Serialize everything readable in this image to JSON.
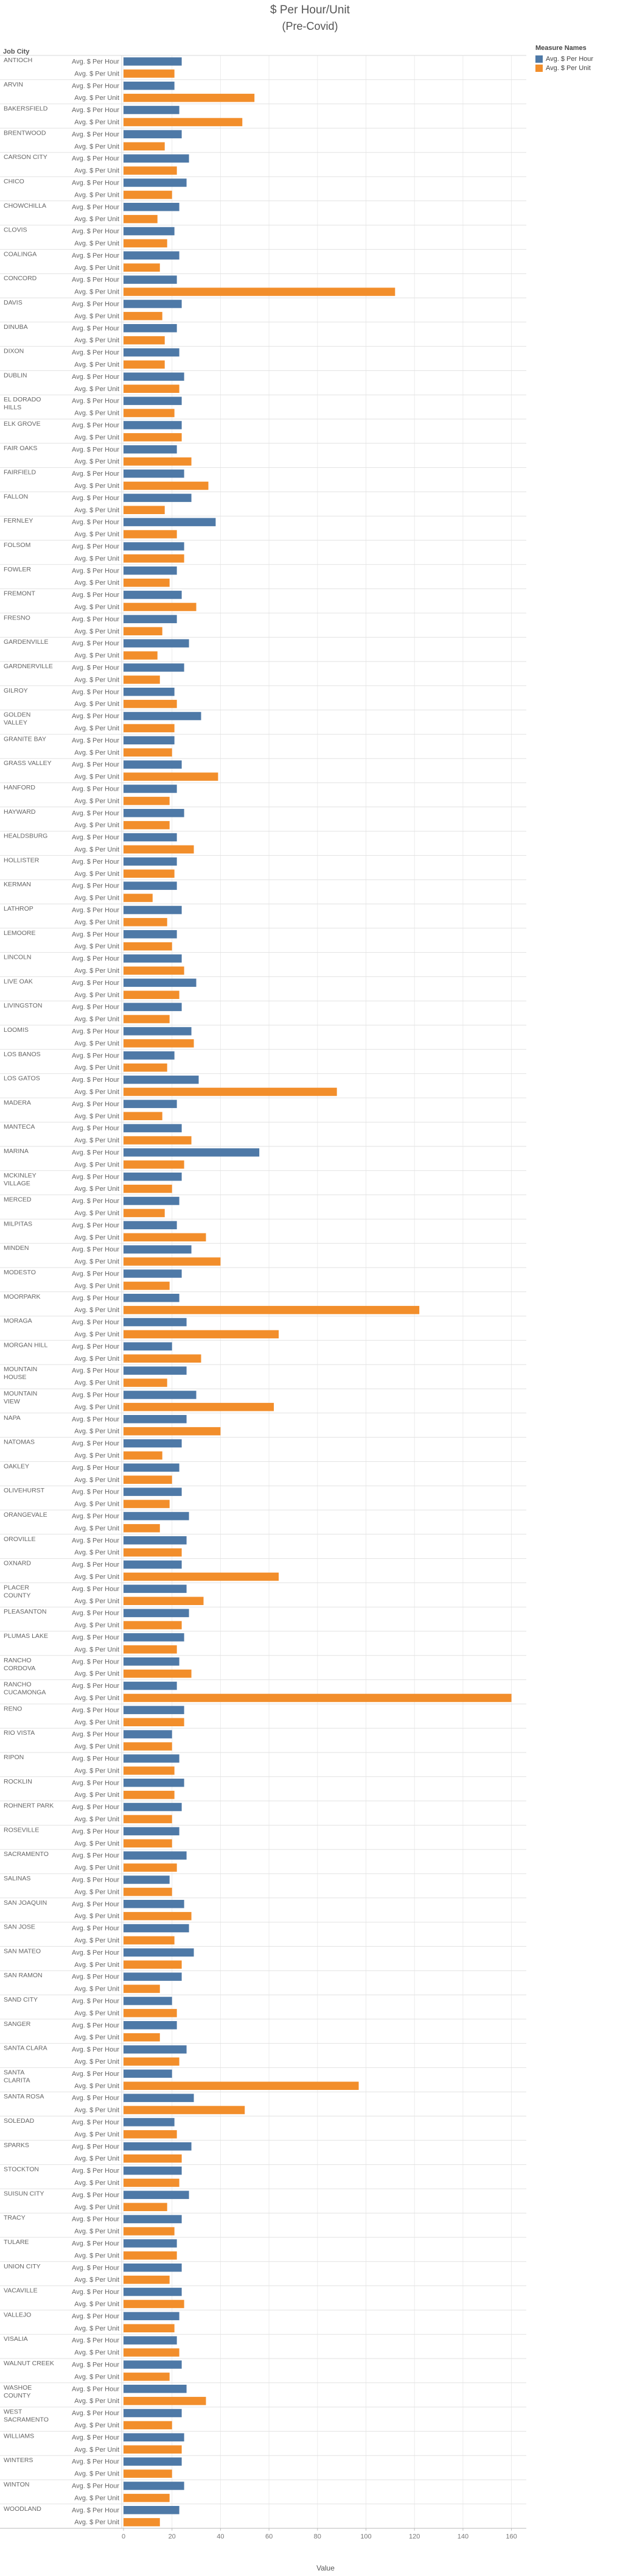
{
  "title": "$ Per Hour/Unit",
  "subtitle": "(Pre-Covid)",
  "colors": {
    "hour": "#4e79a7",
    "unit": "#f28e2b"
  },
  "chart_data": {
    "type": "bar",
    "orientation": "horizontal",
    "row_header": "Job City",
    "xlabel": "Value",
    "xlim": [
      -0.5,
      165
    ],
    "xticks": [
      0,
      20,
      40,
      60,
      80,
      100,
      120,
      140,
      160
    ],
    "grid": true,
    "legend": {
      "title": "Measure Names",
      "position": "top-right",
      "entries": [
        "Avg. $ Per Hour",
        "Avg. $ Per Unit"
      ]
    },
    "measure_labels": [
      "Avg. $ Per Hour",
      "Avg. $ Per Unit"
    ],
    "categories": [
      "ANTIOCH",
      "ARVIN",
      "BAKERSFIELD",
      "BRENTWOOD",
      "CARSON CITY",
      "CHICO",
      "CHOWCHILLA",
      "CLOVIS",
      "COALINGA",
      "CONCORD",
      "DAVIS",
      "DINUBA",
      "DIXON",
      "DUBLIN",
      "EL DORADO HILLS",
      "ELK GROVE",
      "FAIR OAKS",
      "FAIRFIELD",
      "FALLON",
      "FERNLEY",
      "FOLSOM",
      "FOWLER",
      "FREMONT",
      "FRESNO",
      "GARDENVILLE",
      "GARDNERVILLE",
      "GILROY",
      "GOLDEN VALLEY",
      "GRANITE BAY",
      "GRASS VALLEY",
      "HANFORD",
      "HAYWARD",
      "HEALDSBURG",
      "HOLLISTER",
      "KERMAN",
      "LATHROP",
      "LEMOORE",
      "LINCOLN",
      "LIVE OAK",
      "LIVINGSTON",
      "LOOMIS",
      "LOS BANOS",
      "LOS GATOS",
      "MADERA",
      "MANTECA",
      "MARINA",
      "MCKINLEY VILLAGE",
      "MERCED",
      "MILPITAS",
      "MINDEN",
      "MODESTO",
      "MOORPARK",
      "MORAGA",
      "MORGAN HILL",
      "MOUNTAIN HOUSE",
      "MOUNTAIN VIEW",
      "NAPA",
      "NATOMAS",
      "OAKLEY",
      "OLIVEHURST",
      "ORANGEVALE",
      "OROVILLE",
      "OXNARD",
      "PLACER COUNTY",
      "PLEASANTON",
      "PLUMAS LAKE",
      "RANCHO CORDOVA",
      "RANCHO CUCAMONGA",
      "RENO",
      "RIO VISTA",
      "RIPON",
      "ROCKLIN",
      "ROHNERT PARK",
      "ROSEVILLE",
      "SACRAMENTO",
      "SALINAS",
      "SAN JOAQUIN",
      "SAN JOSE",
      "SAN MATEO",
      "SAN RAMON",
      "SAND CITY",
      "SANGER",
      "SANTA CLARA",
      "SANTA CLARITA",
      "SANTA ROSA",
      "SOLEDAD",
      "SPARKS",
      "STOCKTON",
      "SUISUN CITY",
      "TRACY",
      "TULARE",
      "UNION CITY",
      "VACAVILLE",
      "VALLEJO",
      "VISALIA",
      "WALNUT CREEK",
      "WASHOE COUNTY",
      "WEST SACRAMENTO",
      "WILLIAMS",
      "WINTERS",
      "WINTON",
      "WOODLAND"
    ],
    "series": [
      {
        "name": "Avg. $ Per Hour",
        "values": [
          24,
          21,
          23,
          24,
          27,
          26,
          23,
          21,
          23,
          22,
          24,
          22,
          23,
          25,
          24,
          24,
          22,
          25,
          28,
          38,
          25,
          22,
          24,
          22,
          27,
          25,
          21,
          32,
          21,
          24,
          22,
          25,
          22,
          22,
          22,
          24,
          22,
          24,
          30,
          24,
          28,
          21,
          31,
          22,
          24,
          56,
          24,
          23,
          22,
          28,
          24,
          23,
          26,
          20,
          26,
          30,
          26,
          24,
          23,
          24,
          27,
          26,
          24,
          26,
          27,
          25,
          23,
          22,
          25,
          20,
          23,
          25,
          24,
          23,
          26,
          19,
          25,
          27,
          29,
          24,
          20,
          22,
          26,
          20,
          29,
          21,
          28,
          24,
          27,
          24,
          22,
          24,
          24,
          23,
          22,
          24,
          26,
          24,
          25,
          24,
          25,
          23
        ],
        "pair_unit_values": [
          21,
          54,
          49,
          17,
          22,
          20,
          14,
          18,
          15,
          112,
          16,
          17,
          17,
          23,
          21,
          24,
          28,
          35,
          17,
          22,
          25,
          19,
          30,
          16,
          14,
          15,
          22,
          21,
          20,
          39,
          19,
          19,
          29,
          21,
          12,
          18,
          20,
          25,
          23,
          19,
          29,
          18,
          88,
          16,
          28,
          25,
          20,
          17,
          34,
          40,
          19,
          122,
          64,
          32,
          18,
          62,
          40,
          16,
          20,
          19,
          15,
          24,
          64,
          33,
          24,
          22,
          28,
          160,
          25,
          20,
          21,
          21,
          20,
          20,
          22,
          20,
          28,
          21,
          24,
          15,
          22,
          15,
          23,
          97,
          50,
          22,
          24,
          23,
          18,
          21,
          22,
          19,
          25,
          21,
          23,
          19,
          34,
          20,
          24,
          20,
          19,
          15
        ]
      },
      {
        "name": "Avg. $ Per Unit",
        "values": [
          21,
          54,
          49,
          17,
          22,
          20,
          14,
          18,
          15,
          112,
          16,
          17,
          17,
          23,
          21,
          24,
          28,
          35,
          17,
          22,
          25,
          19,
          30,
          16,
          14,
          15,
          22,
          21,
          20,
          39,
          19,
          19,
          29,
          21,
          12,
          18,
          20,
          25,
          23,
          19,
          29,
          18,
          88,
          16,
          28,
          25,
          20,
          17,
          34,
          40,
          19,
          122,
          64,
          32,
          18,
          62,
          40,
          16,
          20,
          19,
          15,
          24,
          64,
          33,
          24,
          22,
          28,
          160,
          25,
          20,
          21,
          21,
          20,
          20,
          22,
          20,
          28,
          21,
          24,
          15,
          22,
          15,
          23,
          97,
          50,
          22,
          24,
          23,
          18,
          21,
          22,
          19,
          25,
          21,
          23,
          19,
          34,
          20,
          24,
          20,
          19,
          15
        ]
      }
    ]
  }
}
